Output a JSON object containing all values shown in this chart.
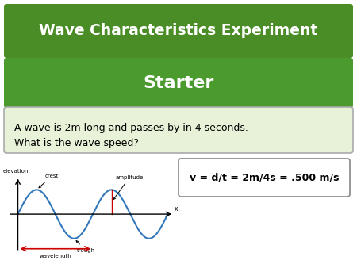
{
  "title_text": "Wave Characteristics Experiment",
  "subtitle_text": "Starter",
  "question_text": "A wave is 2m long and passes by in 4 seconds.\nWhat is the wave speed?",
  "answer_text": "v = d/t = 2m/4s = .500 m/s",
  "bg_color": "#ffffff",
  "title_bg_top": "#4a8c25",
  "title_bg": "#4a8c25",
  "subtitle_bg": "#4a9a2e",
  "question_bg": "#e8f2d8",
  "answer_bg": "#ffffff",
  "title_color": "#ffffff",
  "subtitle_color": "#ffffff",
  "question_color": "#000000",
  "answer_color": "#000000",
  "wave_color": "#3377bb",
  "wavelength_arrow_color": "#cc0000",
  "amplitude_arrow_color": "#cc0000",
  "axis_color": "#000000",
  "title_fontsize": 13.5,
  "subtitle_fontsize": 16,
  "question_fontsize": 9,
  "answer_fontsize": 9
}
